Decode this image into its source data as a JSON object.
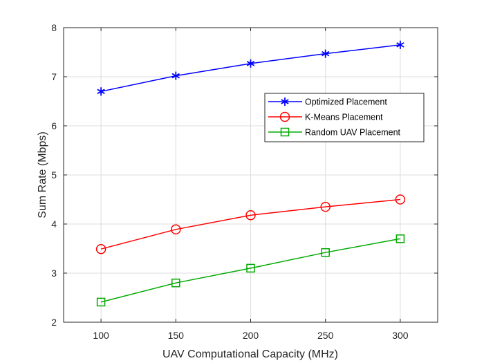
{
  "chart_data": {
    "type": "line",
    "title": "",
    "xlabel": "UAV Computational Capacity (MHz)",
    "ylabel": "Sum Rate (Mbps)",
    "xlim": [
      75,
      325
    ],
    "ylim": [
      2,
      8
    ],
    "xticks": [
      100,
      150,
      200,
      250,
      300
    ],
    "yticks": [
      2,
      3,
      4,
      5,
      6,
      7,
      8
    ],
    "grid": true,
    "legend_position": "upper-right",
    "x": [
      100,
      150,
      200,
      250,
      300
    ],
    "series": [
      {
        "name": "Optimized Placement",
        "color": "#0000ff",
        "marker": "asterisk",
        "values": [
          6.7,
          7.02,
          7.27,
          7.47,
          7.65
        ]
      },
      {
        "name": "K-Means Placement",
        "color": "#ff0000",
        "marker": "circle",
        "values": [
          3.49,
          3.89,
          4.18,
          4.35,
          4.5
        ]
      },
      {
        "name": "Random UAV Placement",
        "color": "#00aa00",
        "marker": "square",
        "values": [
          2.41,
          2.8,
          3.1,
          3.42,
          3.7
        ]
      }
    ]
  }
}
